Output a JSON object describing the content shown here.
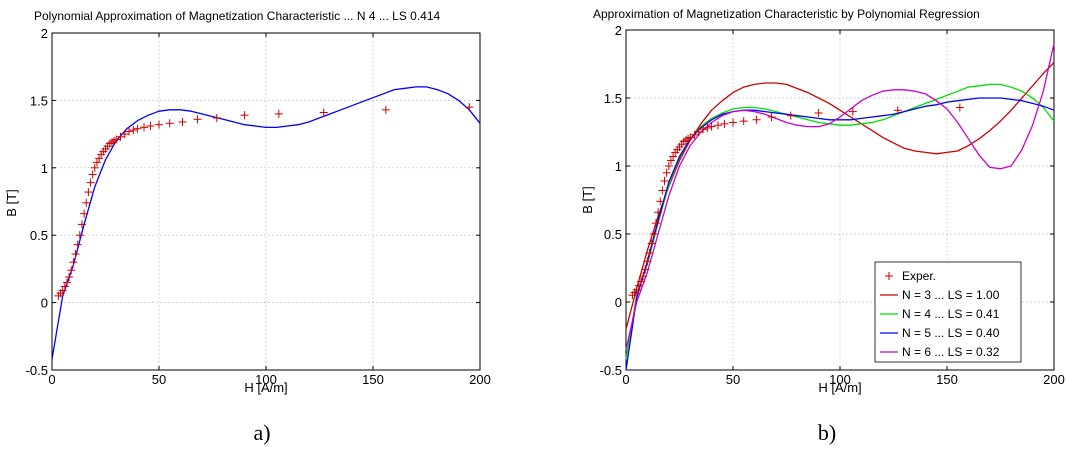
{
  "chart_data": [
    {
      "type": "line",
      "title": "Polynomial Approximation of Magnetization Characteristic  ... N 4 ... LS 0.414",
      "xlabel": "H [A/m]",
      "ylabel": "B [T]",
      "xlim": [
        0,
        200
      ],
      "ylim": [
        -0.5,
        2
      ],
      "xticks": [
        "0",
        "50",
        "100",
        "150",
        "200"
      ],
      "yticks": [
        "-0.5",
        "0",
        "0.5",
        "1",
        "1.5",
        "2"
      ],
      "grid": true,
      "caption": "a)",
      "experimental": {
        "x": [
          3,
          4,
          5,
          6,
          7,
          8,
          9,
          10,
          11,
          12,
          13,
          14,
          15,
          16,
          17,
          18,
          19,
          20,
          21,
          22,
          23,
          24,
          25,
          26,
          27,
          28,
          29,
          30,
          32,
          34,
          36,
          38,
          40,
          43,
          46,
          50,
          55,
          61,
          68,
          77,
          90,
          106,
          127,
          156,
          195
        ],
        "y": [
          0.05,
          0.07,
          0.09,
          0.12,
          0.15,
          0.19,
          0.24,
          0.3,
          0.36,
          0.43,
          0.5,
          0.58,
          0.66,
          0.74,
          0.82,
          0.89,
          0.95,
          1.0,
          1.04,
          1.07,
          1.1,
          1.12,
          1.14,
          1.16,
          1.18,
          1.19,
          1.2,
          1.21,
          1.23,
          1.25,
          1.27,
          1.28,
          1.29,
          1.3,
          1.31,
          1.32,
          1.33,
          1.34,
          1.36,
          1.37,
          1.39,
          1.4,
          1.41,
          1.43,
          1.45
        ]
      },
      "series": [
        {
          "color": "#0000ff",
          "x": [
            0,
            5,
            10,
            15,
            20,
            25,
            30,
            35,
            40,
            45,
            50,
            55,
            60,
            65,
            70,
            75,
            80,
            85,
            90,
            95,
            100,
            105,
            110,
            115,
            120,
            125,
            130,
            135,
            140,
            145,
            150,
            155,
            160,
            165,
            170,
            175,
            180,
            185,
            190,
            195,
            200
          ],
          "y": [
            -0.42,
            0.05,
            0.28,
            0.58,
            0.86,
            1.06,
            1.2,
            1.29,
            1.35,
            1.39,
            1.42,
            1.43,
            1.43,
            1.42,
            1.4,
            1.38,
            1.36,
            1.34,
            1.32,
            1.31,
            1.3,
            1.3,
            1.31,
            1.32,
            1.34,
            1.37,
            1.4,
            1.43,
            1.46,
            1.49,
            1.52,
            1.55,
            1.58,
            1.59,
            1.6,
            1.6,
            1.58,
            1.55,
            1.5,
            1.43,
            1.33
          ]
        }
      ]
    },
    {
      "type": "line",
      "title": "Approximation of Magnetization Characteristic by Polynomial Regression",
      "xlabel": "H [A/m]",
      "ylabel": "B [T]",
      "xlim": [
        0,
        200
      ],
      "ylim": [
        -0.5,
        2
      ],
      "xticks": [
        "0",
        "50",
        "100",
        "150",
        "200"
      ],
      "yticks": [
        "-0.5",
        "0",
        "0.5",
        "1",
        "1.5",
        "2"
      ],
      "grid": true,
      "legend_position": "bottom-right",
      "experimental_name": "Exper.",
      "caption": "b)",
      "experimental": {
        "x": [
          3,
          4,
          5,
          6,
          7,
          8,
          9,
          10,
          11,
          12,
          13,
          14,
          15,
          16,
          17,
          18,
          19,
          20,
          21,
          22,
          23,
          24,
          25,
          26,
          27,
          28,
          29,
          30,
          32,
          34,
          36,
          38,
          40,
          43,
          46,
          50,
          55,
          61,
          68,
          77,
          90,
          106,
          127,
          156
        ],
        "y": [
          0.05,
          0.07,
          0.09,
          0.12,
          0.15,
          0.19,
          0.24,
          0.3,
          0.36,
          0.43,
          0.5,
          0.58,
          0.66,
          0.74,
          0.82,
          0.89,
          0.95,
          1.0,
          1.04,
          1.07,
          1.1,
          1.12,
          1.14,
          1.16,
          1.18,
          1.19,
          1.2,
          1.21,
          1.23,
          1.25,
          1.27,
          1.28,
          1.29,
          1.3,
          1.31,
          1.32,
          1.33,
          1.34,
          1.36,
          1.37,
          1.39,
          1.4,
          1.41,
          1.43
        ]
      },
      "series": [
        {
          "name": "N = 3 ... LS = 1.00",
          "color": "#cc0000",
          "x": [
            0,
            5,
            10,
            15,
            20,
            25,
            30,
            35,
            40,
            45,
            50,
            55,
            60,
            65,
            70,
            75,
            80,
            85,
            90,
            95,
            100,
            105,
            110,
            115,
            120,
            125,
            130,
            135,
            140,
            145,
            150,
            155,
            160,
            165,
            170,
            175,
            180,
            185,
            190,
            195,
            200
          ],
          "y": [
            -0.2,
            0.1,
            0.38,
            0.63,
            0.85,
            1.04,
            1.19,
            1.31,
            1.41,
            1.48,
            1.54,
            1.58,
            1.6,
            1.61,
            1.61,
            1.6,
            1.57,
            1.54,
            1.5,
            1.46,
            1.41,
            1.36,
            1.31,
            1.26,
            1.21,
            1.17,
            1.13,
            1.11,
            1.1,
            1.09,
            1.1,
            1.11,
            1.15,
            1.2,
            1.26,
            1.33,
            1.41,
            1.5,
            1.59,
            1.68,
            1.76
          ]
        },
        {
          "name": "N = 4 ... LS = 0.41",
          "color": "#00dd00",
          "x": [
            0,
            5,
            10,
            15,
            20,
            25,
            30,
            35,
            40,
            45,
            50,
            55,
            60,
            65,
            70,
            75,
            80,
            85,
            90,
            95,
            100,
            105,
            110,
            115,
            120,
            125,
            130,
            135,
            140,
            145,
            150,
            155,
            160,
            165,
            170,
            175,
            180,
            185,
            190,
            195,
            200
          ],
          "y": [
            -0.42,
            0.05,
            0.28,
            0.58,
            0.86,
            1.06,
            1.2,
            1.29,
            1.35,
            1.39,
            1.42,
            1.43,
            1.43,
            1.42,
            1.4,
            1.38,
            1.36,
            1.34,
            1.32,
            1.31,
            1.3,
            1.3,
            1.31,
            1.32,
            1.34,
            1.37,
            1.4,
            1.43,
            1.46,
            1.49,
            1.52,
            1.55,
            1.58,
            1.59,
            1.6,
            1.6,
            1.58,
            1.55,
            1.5,
            1.43,
            1.33
          ]
        },
        {
          "name": "N = 5 ... LS = 0.40",
          "color": "#0000ff",
          "x": [
            0,
            5,
            10,
            15,
            20,
            25,
            30,
            35,
            40,
            45,
            50,
            55,
            60,
            65,
            70,
            75,
            80,
            85,
            90,
            95,
            100,
            105,
            110,
            115,
            120,
            125,
            130,
            135,
            140,
            145,
            150,
            155,
            160,
            165,
            170,
            175,
            180,
            185,
            190,
            195,
            200
          ],
          "y": [
            -0.5,
            0.03,
            0.3,
            0.6,
            0.88,
            1.07,
            1.2,
            1.28,
            1.34,
            1.38,
            1.4,
            1.41,
            1.41,
            1.4,
            1.39,
            1.38,
            1.37,
            1.36,
            1.35,
            1.34,
            1.34,
            1.34,
            1.35,
            1.36,
            1.37,
            1.38,
            1.4,
            1.42,
            1.44,
            1.45,
            1.47,
            1.48,
            1.49,
            1.5,
            1.5,
            1.5,
            1.49,
            1.48,
            1.46,
            1.44,
            1.41
          ]
        },
        {
          "name": "N = 6 ... LS = 0.32",
          "color": "#cc00cc",
          "x": [
            0,
            5,
            10,
            15,
            20,
            25,
            30,
            35,
            40,
            45,
            50,
            55,
            60,
            65,
            70,
            75,
            80,
            85,
            90,
            95,
            100,
            105,
            110,
            115,
            120,
            125,
            130,
            135,
            140,
            145,
            150,
            155,
            160,
            165,
            170,
            175,
            180,
            185,
            190,
            195,
            200
          ],
          "y": [
            -0.35,
            0.0,
            0.22,
            0.5,
            0.78,
            1.0,
            1.15,
            1.25,
            1.32,
            1.37,
            1.4,
            1.41,
            1.4,
            1.38,
            1.35,
            1.32,
            1.3,
            1.29,
            1.29,
            1.31,
            1.36,
            1.42,
            1.48,
            1.52,
            1.55,
            1.56,
            1.56,
            1.55,
            1.53,
            1.48,
            1.42,
            1.32,
            1.2,
            1.08,
            0.99,
            0.98,
            1.0,
            1.12,
            1.3,
            1.55,
            1.9
          ]
        }
      ]
    }
  ]
}
